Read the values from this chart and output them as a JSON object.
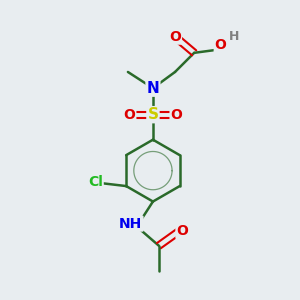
{
  "bg_color": "#e8edf0",
  "atom_colors": {
    "C": "#3a3a3a",
    "H": "#808080",
    "O": "#dd0000",
    "N": "#0000ee",
    "S": "#cccc00",
    "Cl": "#22bb22"
  },
  "bond_color": "#2a6a2a",
  "figsize": [
    3.0,
    3.0
  ],
  "dpi": 100
}
